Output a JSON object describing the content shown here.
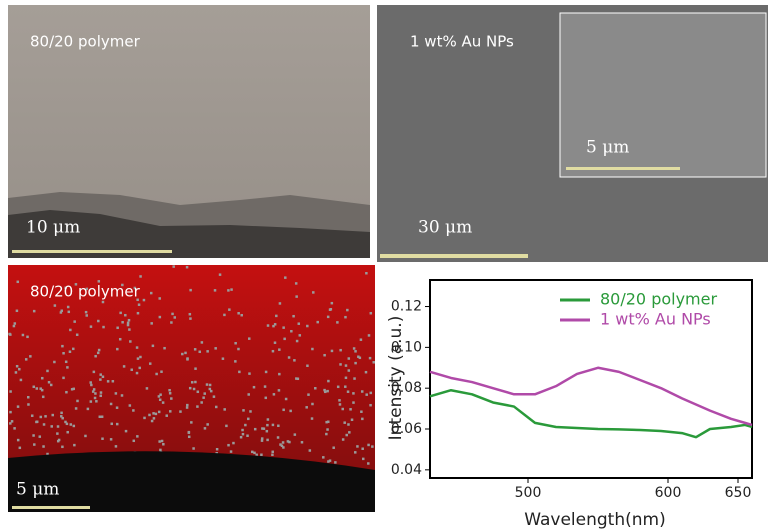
{
  "panels": [
    {
      "label": "80/20 polymer",
      "scale_bar": "10 μm"
    },
    {
      "label": "1 wt% Au NPs",
      "scale_bar": "30 μm",
      "inset_scale_bar": "5 μm"
    },
    {
      "label": "80/20 polymer",
      "scale_bar": "5 μm"
    }
  ],
  "chart_data": {
    "type": "line",
    "x_label": "Wavelength(nm)",
    "y_label": "Intensity (a.u.)",
    "x": [
      430,
      445,
      460,
      475,
      490,
      505,
      520,
      535,
      550,
      565,
      580,
      595,
      610,
      620,
      630,
      645,
      655,
      660
    ],
    "series": [
      {
        "name": "80/20 polymer",
        "color": "#2a9a3a",
        "values": [
          0.076,
          0.079,
          0.077,
          0.073,
          0.071,
          0.063,
          0.061,
          0.0605,
          0.06,
          0.0598,
          0.0595,
          0.059,
          0.058,
          0.056,
          0.06,
          0.061,
          0.062,
          0.061
        ]
      },
      {
        "name": "1 wt% Au NPs",
        "color": "#b04aa8",
        "values": [
          0.088,
          0.085,
          0.083,
          0.08,
          0.077,
          0.077,
          0.081,
          0.087,
          0.09,
          0.088,
          0.084,
          0.08,
          0.075,
          0.072,
          0.069,
          0.065,
          0.063,
          0.062
        ]
      }
    ],
    "xlim": [
      430,
      660
    ],
    "xticks": [
      500,
      600,
      650
    ],
    "ylim": [
      0.036,
      0.133
    ],
    "yticks": [
      0.04,
      0.06,
      0.08,
      {
        "value": 0.1,
        "label": "0.10"
      },
      0.12
    ],
    "legend": "upper right"
  }
}
